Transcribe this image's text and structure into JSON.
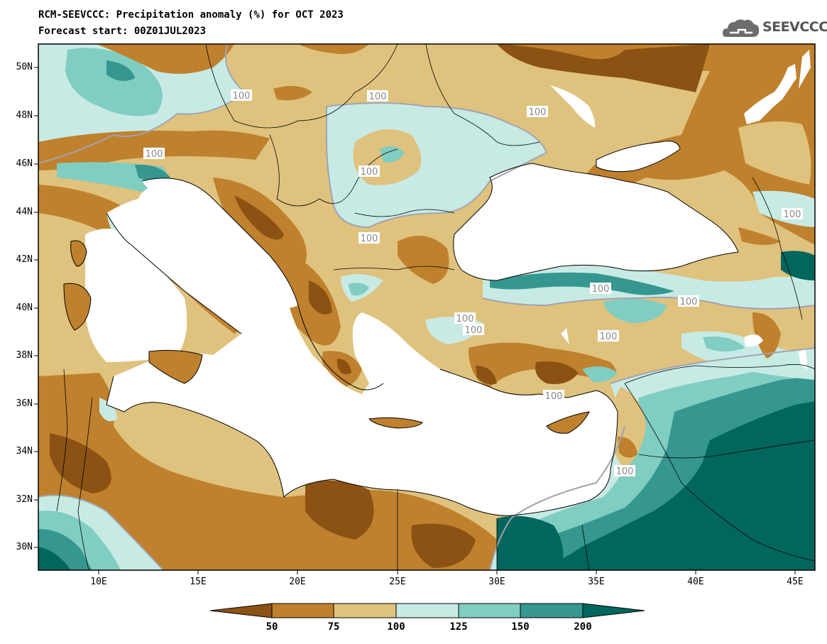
{
  "header": {
    "title": "RCM-SEEVCCC: Precipitation anomaly (%) for OCT 2023",
    "subtitle": "Forecast start: 00Z01JUL2023"
  },
  "logo": {
    "text": "SEEVCCC",
    "icon": "cloud-icon"
  },
  "map": {
    "variable": "Precipitation anomaly (%)",
    "lat_ticks": [
      "50N",
      "48N",
      "46N",
      "44N",
      "42N",
      "40N",
      "38N",
      "36N",
      "34N",
      "32N",
      "30N"
    ],
    "lon_ticks": [
      "10E",
      "15E",
      "20E",
      "25E",
      "30E",
      "35E",
      "40E",
      "45E"
    ],
    "contour_labels": [
      "100",
      "100",
      "100",
      "100",
      "100",
      "100",
      "100",
      "100",
      "100",
      "100",
      "100",
      "100",
      "100",
      "100"
    ]
  },
  "colorbar": {
    "levels": [
      "50",
      "75",
      "100",
      "125",
      "150",
      "200"
    ],
    "colors": [
      "#8c5213",
      "#bf812d",
      "#dfc27d",
      "#c7eae5",
      "#80cdc1",
      "#35978f",
      "#01665e"
    ]
  }
}
